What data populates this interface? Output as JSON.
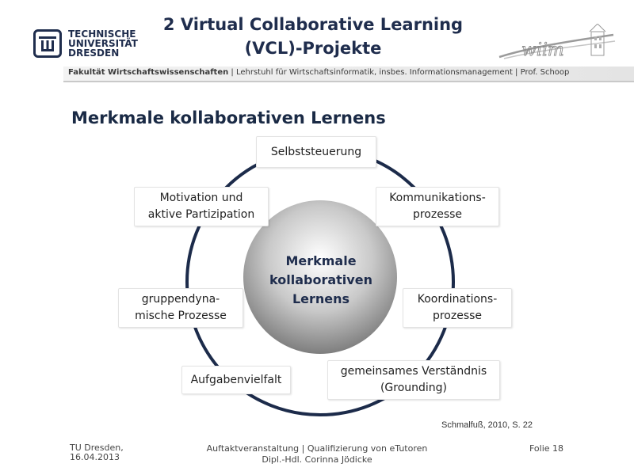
{
  "logo": {
    "icon": "tud-logo-icon",
    "lines": [
      "TECHNISCHE",
      "UNIVERSITÄT",
      "DRESDEN"
    ]
  },
  "header": {
    "title_line1": "2 Virtual Collaborative Learning",
    "title_line2": "(VCL)-Projekte",
    "faculty": "Fakultät Wirtschaftswissenschaften",
    "chair": " | Lehrstuhl für Wirtschaftsinformatik, insbes. Informationsmanagement | Prof. Schoop",
    "wiim_logo": "wiim"
  },
  "section_title": "Merkmale kollaborativen Lernens",
  "diagram": {
    "center": "Merkmale\nkollaborativen\nLernens",
    "nodes": [
      "Selbststeuerung",
      "Kommunikations-\nprozesse",
      "Koordinations-\nprozesse",
      "gemeinsames Verständnis\n(Grounding)",
      "Aufgabenvielfalt",
      "gruppendyna-\nmische Prozesse",
      "Motivation und\naktive Partizipation"
    ]
  },
  "citation": "Schmalfuß, 2010, S. 22",
  "footer": {
    "left": "TU Dresden,\n16.04.2013",
    "center": "Auftaktveranstaltung | Qualifizierung von eTutoren\nDipl.-Hdl. Corinna Jödicke",
    "right": "Folie 18"
  },
  "colors": {
    "navy": "#1f2d4d",
    "ring": "#1c2b4a"
  }
}
